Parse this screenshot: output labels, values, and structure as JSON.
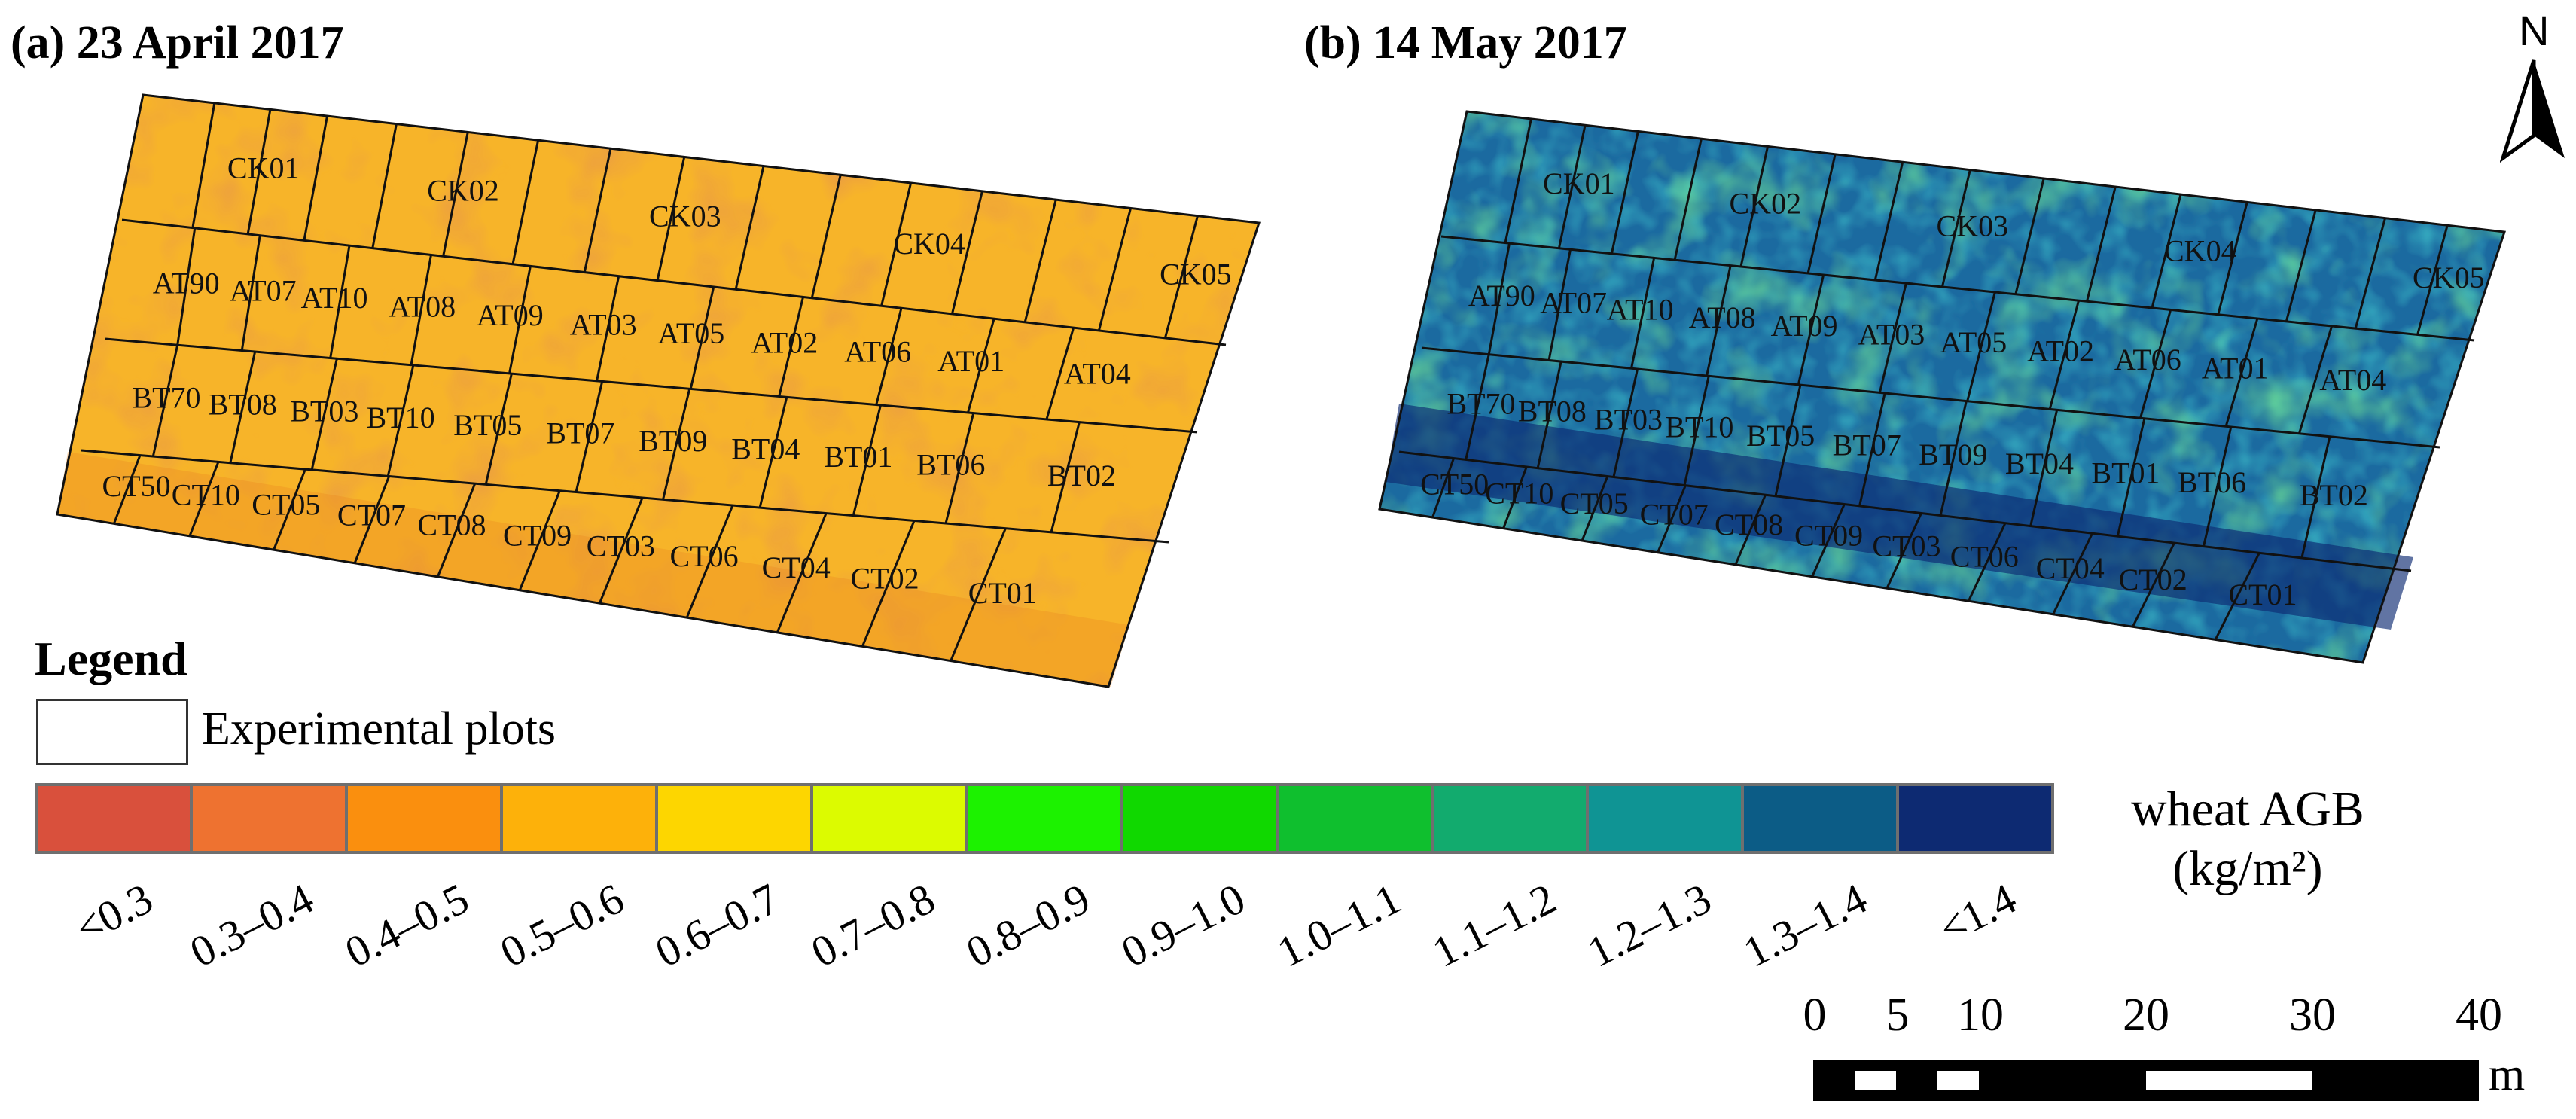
{
  "panels": [
    {
      "title": "(a)  23 April 2017"
    },
    {
      "title": "(b)  14 May 2017"
    }
  ],
  "plots": {
    "row1": [
      "CK01",
      "CK02",
      "CK03",
      "CK04",
      "CK05"
    ],
    "row2": [
      "AT90",
      "AT07",
      "AT10",
      "AT08",
      "AT09",
      "AT03",
      "AT05",
      "AT02",
      "AT06",
      "AT01",
      "AT04"
    ],
    "row3": [
      "BT70",
      "BT08",
      "BT03",
      "BT10",
      "BT05",
      "BT07",
      "BT09",
      "BT04",
      "BT01",
      "BT06",
      "BT02"
    ],
    "row4": [
      "CT50",
      "CT10",
      "CT05",
      "CT07",
      "CT08",
      "CT09",
      "CT03",
      "CT06",
      "CT04",
      "CT02",
      "CT01"
    ]
  },
  "legend": {
    "heading": "Legend",
    "plots_label": "Experimental plots",
    "variable": "wheat AGB",
    "unit": "(kg/m²)",
    "bins": [
      {
        "label": "<0.3",
        "color": "#d9503c"
      },
      {
        "label": "0.3–0.4",
        "color": "#ee7230"
      },
      {
        "label": "0.4–0.5",
        "color": "#fa8f0e"
      },
      {
        "label": "0.5–0.6",
        "color": "#fdb10a"
      },
      {
        "label": "0.6–0.7",
        "color": "#fdd600"
      },
      {
        "label": "0.7–0.8",
        "color": "#dcfb00"
      },
      {
        "label": "0.8–0.9",
        "color": "#1cf200"
      },
      {
        "label": "0.9–1.0",
        "color": "#10d800"
      },
      {
        "label": "1.0–1.1",
        "color": "#0fbf2e"
      },
      {
        "label": "1.1–1.2",
        "color": "#12ab6e"
      },
      {
        "label": "1.2–1.3",
        "color": "#0f9494"
      },
      {
        "label": "1.3–1.4",
        "color": "#0c5c86"
      },
      {
        "label": "<1.4",
        "color": "#0d2a72"
      }
    ]
  },
  "scale_bar": {
    "ticks": [
      "0",
      "5",
      "10",
      "20",
      "30",
      "40"
    ],
    "unit": "m"
  },
  "north_arrow": {
    "label": "N",
    "icon": "north-arrow-icon"
  },
  "colors": {
    "panel_a_base": "#f7b429",
    "panel_b_base": "#1b5d92"
  }
}
